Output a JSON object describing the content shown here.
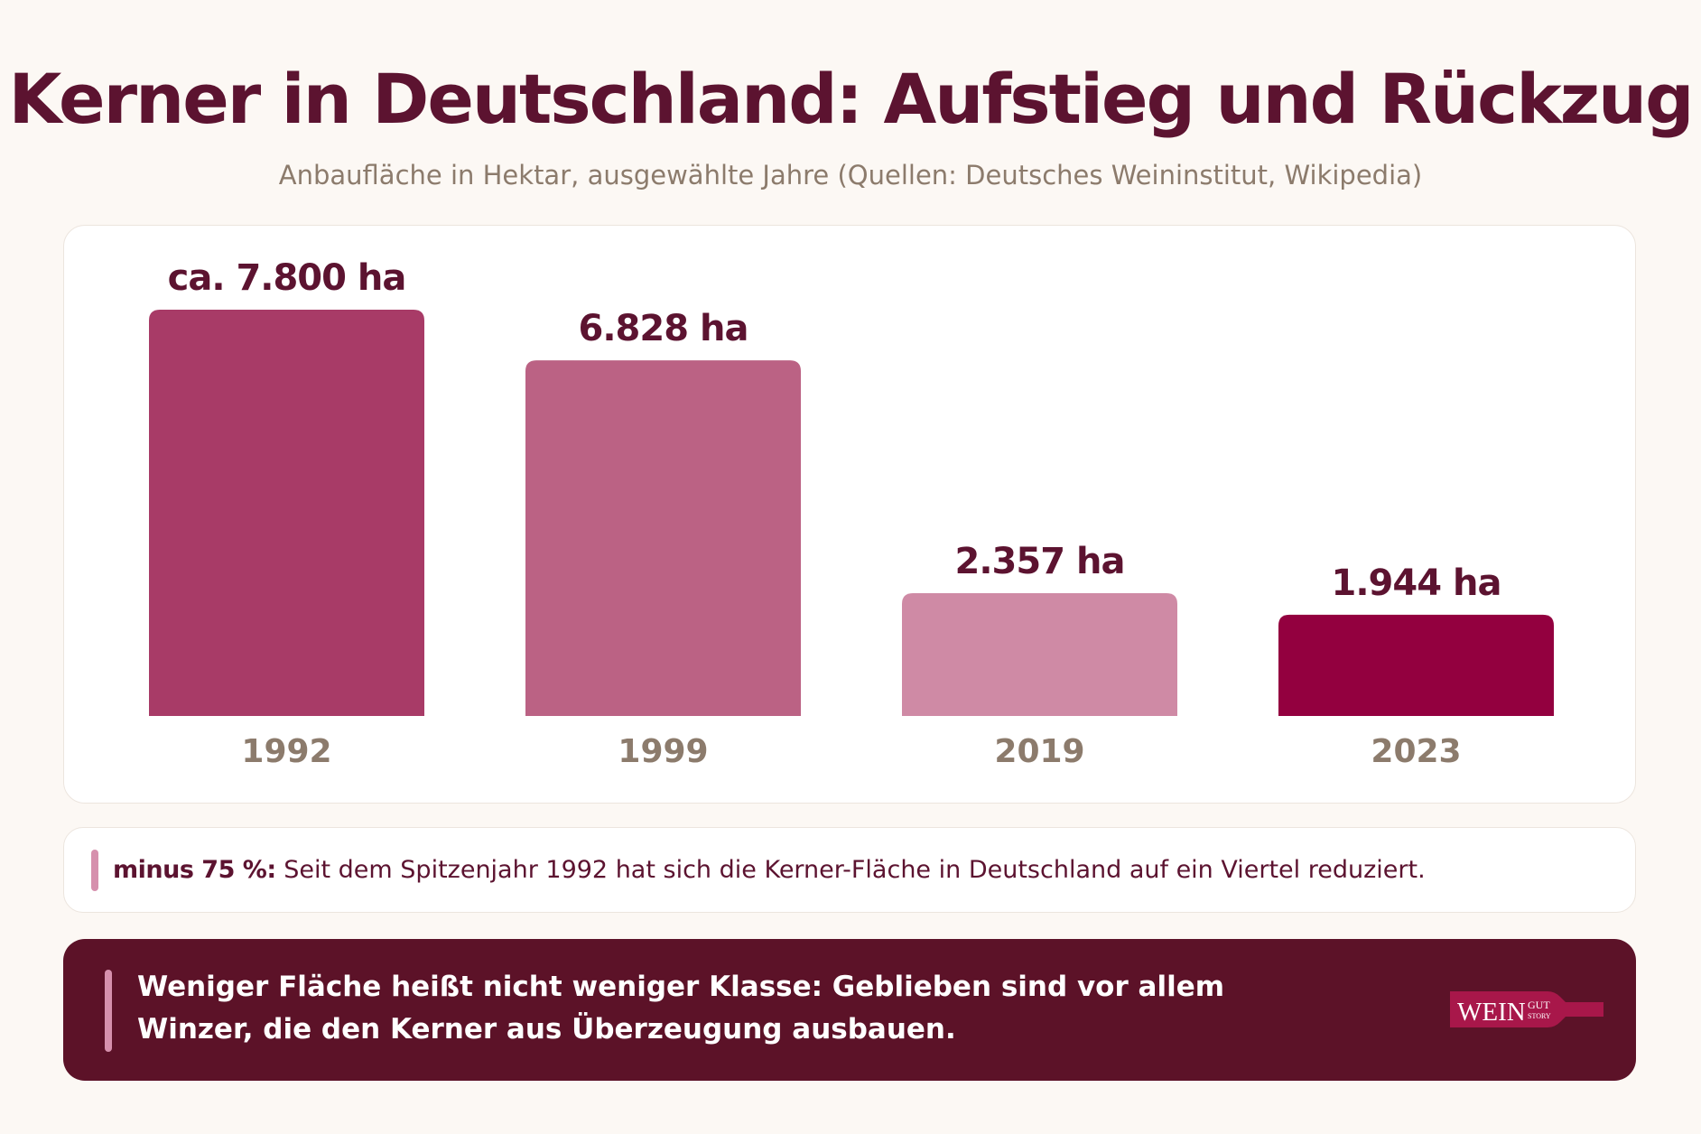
{
  "title": "Kerner in Deutschland: Aufstieg und Rückzug",
  "subtitle": "Anbaufläche in Hektar, ausgewählte Jahre (Quellen: Deutsches Weininstitut, Wikipedia)",
  "colors": {
    "title": "#5c1330",
    "subtitle": "#8c7b6c",
    "value_labels": "#5c1330",
    "tick_labels": "#8c7b6c",
    "banner_bg": "#5c1228",
    "accent_pink": "#d690ad"
  },
  "chart_data": {
    "type": "bar",
    "categories": [
      "1992",
      "1999",
      "2019",
      "2023"
    ],
    "values": [
      7800,
      6828,
      2357,
      1944
    ],
    "value_labels": [
      "ca. 7.800 ha",
      "6.828 ha",
      "2.357 ha",
      "1.944 ha"
    ],
    "bar_colors": [
      "#a83b67",
      "#bb6284",
      "#cf8aa5",
      "#93003f"
    ],
    "ylim": [
      0,
      7800
    ],
    "grid": false,
    "legend": "none"
  },
  "note": {
    "strong": "minus 75 %:",
    "text": "Seit dem Spitzenjahr 1992 hat sich die Kerner-Fläche in Deutschland auf ein Viertel reduziert."
  },
  "banner": {
    "text": "Weniger Fläche heißt nicht weniger Klasse: Geblieben sind vor allem Winzer, die den Kerner aus Überzeugung ausbauen."
  },
  "logo": {
    "word": "WEIN",
    "top": "GUT",
    "bottom": "STORY",
    "color": "#a8174a"
  }
}
